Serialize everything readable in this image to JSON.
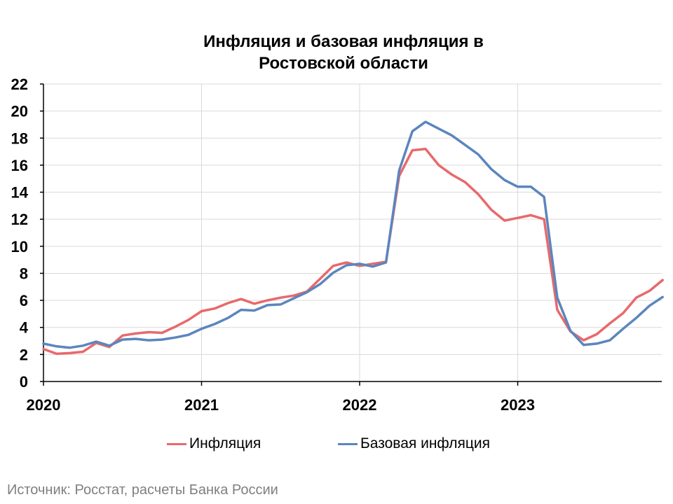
{
  "chart_data": {
    "type": "line",
    "title_line1": "Инфляция и базовая инфляция в",
    "title_line2": "Ростовской области",
    "ylim": [
      0,
      22
    ],
    "yticks": [
      "0",
      "2",
      "4",
      "6",
      "8",
      "10",
      "12",
      "14",
      "16",
      "18",
      "20",
      "22"
    ],
    "xticks": [
      "2020",
      "2021",
      "2022",
      "2023"
    ],
    "x": [
      "2020-01",
      "2020-02",
      "2020-03",
      "2020-04",
      "2020-05",
      "2020-06",
      "2020-07",
      "2020-08",
      "2020-09",
      "2020-10",
      "2020-11",
      "2020-12",
      "2021-01",
      "2021-02",
      "2021-03",
      "2021-04",
      "2021-05",
      "2021-06",
      "2021-07",
      "2021-08",
      "2021-09",
      "2021-10",
      "2021-11",
      "2021-12",
      "2022-01",
      "2022-02",
      "2022-03",
      "2022-04",
      "2022-05",
      "2022-06",
      "2022-07",
      "2022-08",
      "2022-09",
      "2022-10",
      "2022-11",
      "2022-12",
      "2023-01",
      "2023-02",
      "2023-03",
      "2023-04",
      "2023-05",
      "2023-06",
      "2023-07",
      "2023-08",
      "2023-09",
      "2023-10",
      "2023-11",
      "2023-12"
    ],
    "grid": true,
    "legend_position": "bottom",
    "series": [
      {
        "name": "Инфляция",
        "color": "#e8696b",
        "values": [
          2.4,
          2.05,
          2.1,
          2.2,
          2.85,
          2.55,
          3.4,
          3.55,
          3.65,
          3.6,
          4.05,
          4.55,
          5.2,
          5.4,
          5.8,
          6.1,
          5.75,
          6.0,
          6.2,
          6.35,
          6.65,
          7.6,
          8.55,
          8.8,
          8.55,
          8.7,
          8.85,
          15.2,
          17.1,
          17.2,
          16.0,
          15.3,
          14.75,
          13.85,
          12.7,
          11.9,
          12.1,
          12.3,
          12.0,
          5.3,
          3.7,
          3.05,
          3.5,
          4.3,
          5.05,
          6.2,
          6.7,
          7.5
        ]
      },
      {
        "name": "Базовая инфляция",
        "color": "#5b86bd",
        "values": [
          2.8,
          2.6,
          2.5,
          2.65,
          2.95,
          2.65,
          3.1,
          3.15,
          3.05,
          3.1,
          3.25,
          3.45,
          3.9,
          4.25,
          4.7,
          5.3,
          5.25,
          5.65,
          5.7,
          6.15,
          6.6,
          7.2,
          8.05,
          8.6,
          8.7,
          8.5,
          8.8,
          15.6,
          18.5,
          19.2,
          18.7,
          18.2,
          17.5,
          16.8,
          15.7,
          14.9,
          14.4,
          14.4,
          13.65,
          6.2,
          3.75,
          2.7,
          2.8,
          3.05,
          3.9,
          4.7,
          5.6,
          6.25
        ]
      }
    ]
  },
  "source": "Источник: Росстат, расчеты Банка России"
}
